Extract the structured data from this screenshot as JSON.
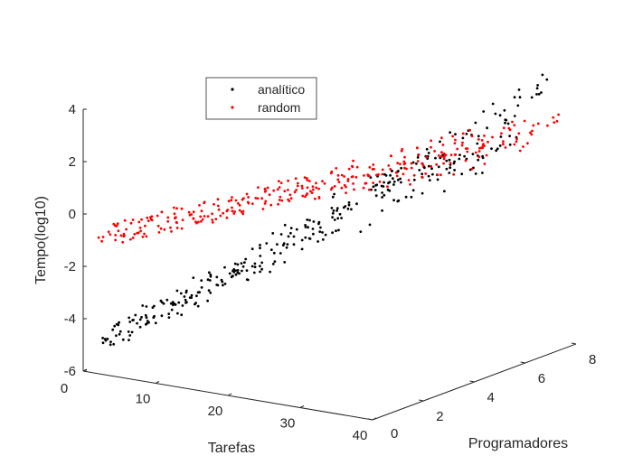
{
  "chart_data": {
    "type": "scatter",
    "projection": "3d",
    "title": "",
    "xlabel": "Tarefas",
    "ylabel": "Programadores",
    "zlabel": "Tempo(log10)",
    "xlim": [
      0,
      40
    ],
    "ylim": [
      0,
      8
    ],
    "zlim": [
      -6,
      4
    ],
    "x_ticks": [
      "0",
      "10",
      "20",
      "30",
      "40"
    ],
    "y_ticks": [
      "0",
      "2",
      "4",
      "6",
      "8"
    ],
    "z_ticks": [
      "-6",
      "-4",
      "-2",
      "0",
      "2",
      "4"
    ],
    "grid": false,
    "legend_position": "top-left",
    "series": [
      {
        "name": "analítico",
        "color": "#000000",
        "marker": "dot",
        "model": {
          "z_at_x0_y0": -5.2,
          "slope_x": 0.105,
          "slope_y": 0.72
        },
        "extent": {
          "x": [
            2,
            40
          ],
          "y": [
            0.2,
            8
          ]
        },
        "approx_points": 330
      },
      {
        "name": "random",
        "color": "#ff0000",
        "marker": "dot",
        "model": {
          "z_at_x0_y0": -1.0,
          "slope_x": 0.06,
          "slope_y": 0.2
        },
        "extent": {
          "x": [
            2,
            40
          ],
          "y": [
            0.2,
            8
          ]
        },
        "approx_points": 330
      }
    ]
  }
}
